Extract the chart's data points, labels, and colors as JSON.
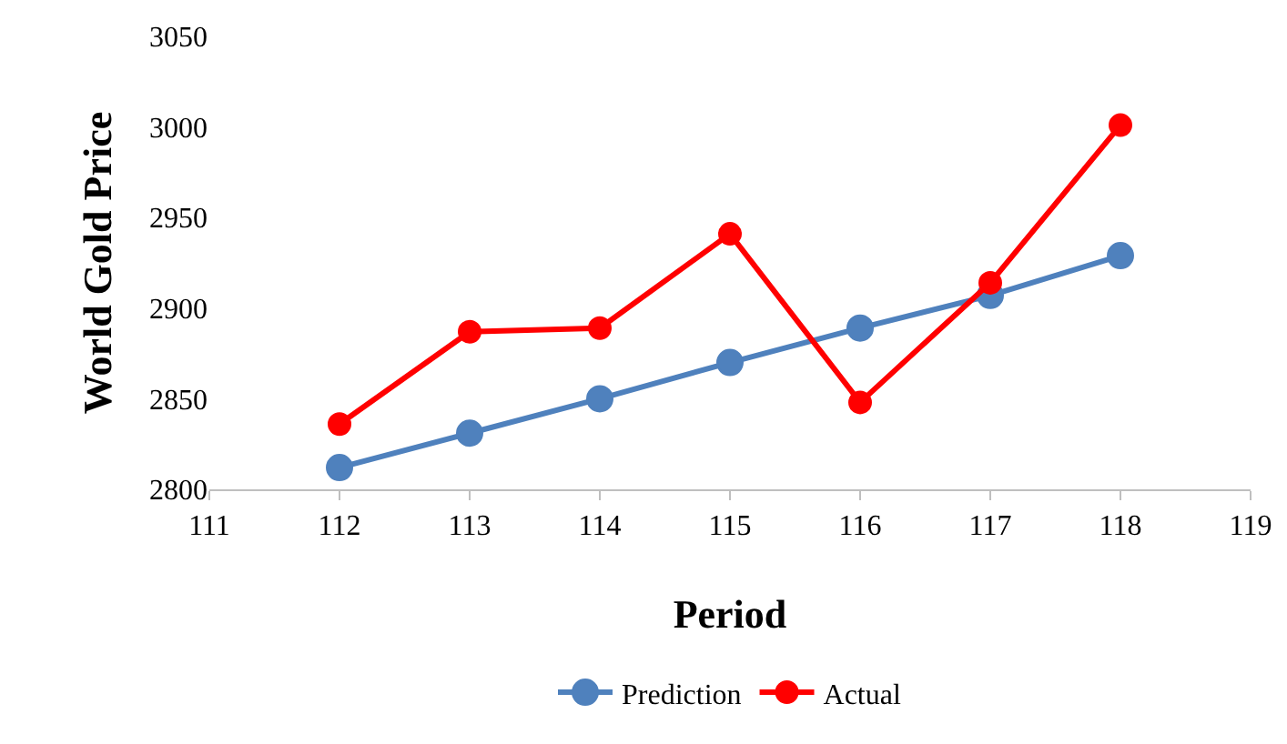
{
  "chart_data": {
    "type": "line",
    "xlabel": "Period",
    "ylabel": "World Gold Price",
    "x": [
      112,
      113,
      114,
      115,
      116,
      117,
      118
    ],
    "series": [
      {
        "name": "Prediction",
        "color": "#4f81bd",
        "values": [
          2812,
          2831,
          2850,
          2870,
          2889,
          2907,
          2929
        ]
      },
      {
        "name": "Actual",
        "color": "#ff0000",
        "values": [
          2836,
          2887,
          2889,
          2941,
          2848,
          2914,
          3001
        ]
      }
    ],
    "xlim": [
      111,
      119
    ],
    "xticks": [
      111,
      112,
      113,
      114,
      115,
      116,
      117,
      118,
      119
    ],
    "ylim": [
      2800,
      3050
    ],
    "yticks": [
      2800,
      2850,
      2900,
      2950,
      3000,
      3050
    ],
    "grid": false,
    "legend": "bottom",
    "marker": "circle",
    "line_style": "solid"
  }
}
